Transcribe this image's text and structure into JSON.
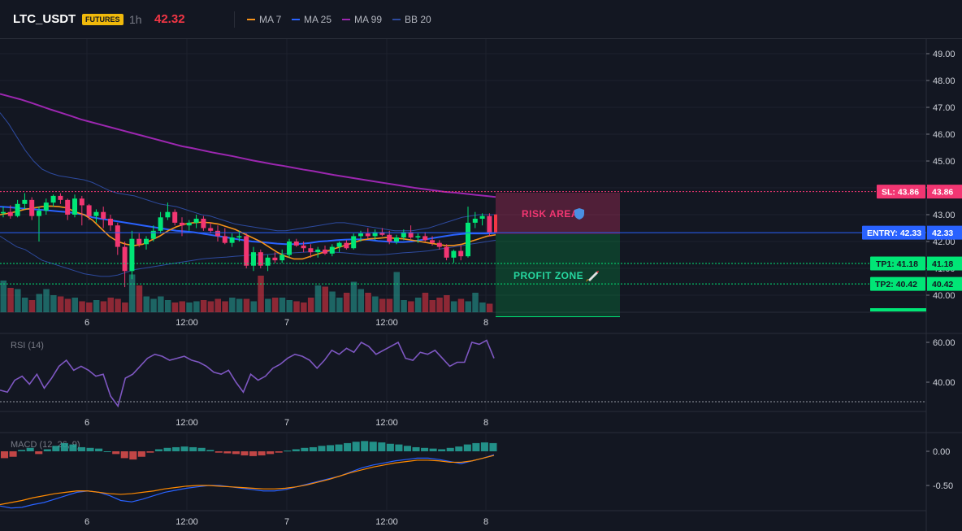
{
  "header": {
    "symbol": "LTC_USDT",
    "market_badge": "FUTURES",
    "interval": "1h",
    "last_price": "42.32",
    "indicators": [
      {
        "label": "MA 7",
        "color": "#f7931a"
      },
      {
        "label": "MA 25",
        "color": "#2962ff"
      },
      {
        "label": "MA 99",
        "color": "#9c27b0"
      },
      {
        "label": "BB 20",
        "color": "#2d4a9e"
      }
    ]
  },
  "price_axis": {
    "ticks": [
      "49.00",
      "48.00",
      "47.00",
      "46.00",
      "45.00",
      "44.00",
      "43.00",
      "42.00",
      "41.00",
      "40.00"
    ],
    "tick_values": [
      49,
      48,
      47,
      46,
      45,
      44,
      43,
      42,
      41,
      40
    ]
  },
  "time_axis": {
    "labels": [
      "6",
      "12:00",
      "7",
      "12:00",
      "8"
    ]
  },
  "levels": {
    "sl": {
      "tag": "SL: 43.86",
      "value": "43.86",
      "price": 43.86,
      "color": "#f23672"
    },
    "entry": {
      "tag": "ENTRY: 42.33",
      "value": "42.33",
      "price": 42.33,
      "color": "#2962ff"
    },
    "tp1": {
      "tag": "TP1: 41.18",
      "value": "41.18",
      "price": 41.18,
      "color": "#00e676"
    },
    "tp2": {
      "tag": "TP2: 40.42",
      "value": "40.42",
      "price": 40.42,
      "color": "#00e676"
    }
  },
  "zones": {
    "risk_label": "RISK AREA",
    "profit_label": "PROFIT ZONE",
    "risk_icon": "shield-icon",
    "profit_icon": "rocket-icon"
  },
  "rsi": {
    "label": "RSI (14)",
    "ticks": [
      "60.00",
      "40.00"
    ],
    "tick_values": [
      60,
      40
    ]
  },
  "macd": {
    "label": "MACD (12, 26, 9)",
    "ticks": [
      "0.00",
      "-0.50"
    ],
    "tick_values": [
      0,
      -0.5
    ]
  },
  "colors": {
    "up": "#26a69a",
    "up_candle": "#00e676",
    "down": "#f23645",
    "background": "#131722"
  },
  "chart_data": {
    "type": "candlestick",
    "series": [
      {
        "name": "LTC_USDT",
        "ohlc": [
          [
            43.05,
            43.3,
            42.9,
            43.1
          ],
          [
            43.1,
            43.35,
            42.85,
            42.95
          ],
          [
            42.95,
            43.55,
            42.9,
            43.4
          ],
          [
            43.4,
            43.8,
            43.2,
            43.55
          ],
          [
            43.55,
            43.65,
            42.8,
            42.95
          ],
          [
            42.95,
            43.3,
            42.0,
            43.15
          ],
          [
            43.15,
            43.6,
            43.0,
            43.45
          ],
          [
            43.45,
            43.75,
            43.3,
            43.7
          ],
          [
            43.7,
            43.8,
            43.4,
            43.55
          ],
          [
            43.55,
            43.6,
            42.8,
            43.0
          ],
          [
            43.0,
            43.75,
            42.9,
            43.6
          ],
          [
            43.6,
            43.7,
            42.6,
            43.35
          ],
          [
            43.35,
            43.4,
            42.8,
            42.95
          ],
          [
            42.95,
            43.2,
            42.7,
            43.1
          ],
          [
            43.1,
            43.3,
            42.5,
            42.85
          ],
          [
            42.85,
            43.0,
            42.4,
            42.6
          ],
          [
            42.6,
            42.7,
            41.5,
            41.8
          ],
          [
            41.8,
            42.0,
            40.3,
            40.9
          ],
          [
            40.9,
            42.4,
            40.6,
            42.1
          ],
          [
            42.1,
            42.3,
            41.8,
            41.9
          ],
          [
            41.9,
            42.2,
            41.7,
            42.1
          ],
          [
            42.1,
            42.6,
            42.0,
            42.4
          ],
          [
            42.4,
            43.1,
            42.3,
            42.9
          ],
          [
            42.9,
            43.45,
            42.8,
            43.1
          ],
          [
            43.1,
            43.2,
            42.6,
            42.7
          ],
          [
            42.7,
            42.9,
            42.2,
            42.6
          ],
          [
            42.6,
            42.8,
            42.4,
            42.7
          ],
          [
            42.7,
            43.0,
            42.5,
            42.85
          ],
          [
            42.85,
            42.95,
            42.4,
            42.5
          ],
          [
            42.5,
            42.7,
            42.3,
            42.4
          ],
          [
            42.4,
            42.6,
            42.0,
            42.2
          ],
          [
            42.2,
            42.5,
            41.9,
            41.95
          ],
          [
            41.95,
            42.3,
            41.8,
            42.15
          ],
          [
            42.15,
            42.4,
            42.0,
            42.2
          ],
          [
            42.2,
            42.3,
            41.0,
            41.1
          ],
          [
            41.1,
            41.8,
            40.9,
            41.6
          ],
          [
            41.6,
            41.7,
            41.0,
            41.1
          ],
          [
            41.1,
            41.5,
            40.9,
            41.4
          ],
          [
            41.4,
            41.6,
            41.2,
            41.3
          ],
          [
            41.3,
            41.7,
            41.2,
            41.5
          ],
          [
            41.5,
            42.1,
            41.4,
            42.0
          ],
          [
            42.0,
            42.1,
            41.8,
            41.85
          ],
          [
            41.85,
            42.0,
            41.6,
            41.75
          ],
          [
            41.75,
            41.9,
            41.4,
            41.6
          ],
          [
            41.6,
            41.8,
            41.4,
            41.7
          ],
          [
            41.7,
            41.85,
            41.5,
            41.55
          ],
          [
            41.55,
            41.9,
            41.45,
            41.8
          ],
          [
            41.8,
            42.0,
            41.6,
            41.95
          ],
          [
            41.95,
            42.05,
            41.7,
            41.75
          ],
          [
            41.75,
            42.3,
            41.7,
            42.2
          ],
          [
            42.2,
            42.4,
            42.0,
            42.3
          ],
          [
            42.3,
            42.5,
            42.1,
            42.2
          ],
          [
            42.2,
            42.45,
            42.05,
            42.35
          ],
          [
            42.35,
            42.5,
            42.2,
            42.25
          ],
          [
            42.25,
            42.4,
            41.9,
            42.0
          ],
          [
            42.0,
            42.25,
            41.9,
            42.15
          ],
          [
            42.15,
            42.45,
            42.05,
            42.35
          ],
          [
            42.35,
            42.6,
            42.1,
            42.15
          ],
          [
            42.15,
            42.3,
            41.95,
            42.2
          ],
          [
            42.2,
            42.35,
            42.0,
            42.05
          ],
          [
            42.05,
            42.2,
            41.85,
            41.95
          ],
          [
            41.95,
            42.05,
            41.7,
            41.8
          ],
          [
            41.8,
            41.9,
            41.3,
            41.4
          ],
          [
            41.4,
            41.7,
            41.2,
            41.65
          ],
          [
            41.65,
            41.85,
            41.3,
            41.45
          ],
          [
            41.45,
            43.3,
            41.4,
            42.7
          ],
          [
            42.7,
            43.1,
            42.5,
            42.85
          ],
          [
            42.85,
            43.05,
            42.6,
            42.95
          ],
          [
            42.95,
            43.05,
            42.2,
            42.32
          ]
        ]
      }
    ],
    "volume": [
      1.3,
      1.0,
      0.95,
      0.6,
      0.5,
      0.75,
      0.95,
      0.7,
      0.65,
      0.55,
      0.6,
      0.45,
      0.4,
      0.5,
      0.45,
      0.6,
      0.55,
      0.4,
      1.55,
      1.1,
      0.65,
      0.55,
      0.65,
      0.5,
      0.4,
      0.45,
      0.4,
      0.45,
      0.5,
      0.45,
      0.55,
      0.45,
      0.6,
      0.55,
      0.55,
      0.45,
      1.5,
      0.55,
      0.6,
      0.6,
      0.5,
      0.45,
      0.4,
      0.6,
      1.1,
      1.05,
      0.85,
      0.6,
      0.8,
      1.25,
      0.95,
      0.8,
      0.65,
      0.55,
      0.55,
      1.65,
      0.5,
      0.45,
      0.6,
      0.8,
      0.5,
      0.6,
      0.7,
      0.45,
      0.55,
      0.45,
      0.8,
      0.4,
      0.35
    ],
    "overlays": {
      "ma7": [
        43.0,
        43.05,
        43.12,
        43.2,
        43.25,
        43.3,
        43.32,
        43.3,
        43.25,
        43.1,
        43.0,
        42.8,
        42.5,
        42.2,
        42.0,
        41.9,
        41.85,
        41.9,
        42.05,
        42.2,
        42.4,
        42.55,
        42.65,
        42.7,
        42.72,
        42.7,
        42.65,
        42.55,
        42.45,
        42.3,
        42.15,
        42.0,
        41.8,
        41.6,
        41.45,
        41.35,
        41.35,
        41.45,
        41.55,
        41.65,
        41.75,
        41.85,
        41.95,
        42.05,
        42.1,
        42.12,
        42.15,
        42.12,
        42.1,
        42.05,
        42.0,
        41.95,
        41.9,
        41.85,
        41.85,
        41.9,
        42.0,
        42.1,
        42.2,
        42.25
      ],
      "ma25": [
        43.3,
        43.28,
        43.25,
        43.22,
        43.2,
        43.18,
        43.15,
        43.12,
        43.1,
        43.05,
        43.0,
        42.9,
        42.85,
        42.8,
        42.75,
        42.7,
        42.65,
        42.6,
        42.55,
        42.5,
        42.45,
        42.4,
        42.38,
        42.35,
        42.3,
        42.25,
        42.2,
        42.15,
        42.1,
        42.05,
        42.0,
        41.98,
        41.95,
        41.92,
        41.9,
        41.9,
        41.92,
        41.95,
        42.0,
        42.02,
        42.05,
        42.07,
        42.08,
        42.08,
        42.06,
        42.02,
        42.0,
        41.98,
        41.98,
        42.0,
        42.05,
        42.1,
        42.15,
        42.2,
        42.25,
        42.28,
        42.3,
        42.3,
        42.3,
        42.32
      ],
      "ma99": [
        47.5,
        47.4,
        47.3,
        47.18,
        47.05,
        46.92,
        46.8,
        46.68,
        46.55,
        46.45,
        46.35,
        46.25,
        46.15,
        46.05,
        45.95,
        45.85,
        45.75,
        45.65,
        45.55,
        45.48,
        45.4,
        45.32,
        45.25,
        45.18,
        45.1,
        45.02,
        44.95,
        44.88,
        44.82,
        44.75,
        44.68,
        44.62,
        44.55,
        44.48,
        44.42,
        44.36,
        44.3,
        44.24,
        44.18,
        44.12,
        44.06,
        44.0,
        43.95,
        43.9,
        43.85,
        43.82,
        43.78,
        43.74,
        43.7,
        43.66
      ],
      "bb_upper": [
        46.8,
        46.4,
        45.9,
        45.4,
        45.0,
        44.7,
        44.55,
        44.45,
        44.4,
        44.35,
        44.3,
        44.2,
        44.05,
        43.9,
        43.8,
        43.75,
        43.7,
        43.6,
        43.5,
        43.4,
        43.35,
        43.3,
        43.2,
        43.1,
        43.0,
        42.95,
        42.85,
        42.75,
        42.65,
        42.6,
        42.55,
        42.5,
        42.45,
        42.4,
        42.4,
        42.45,
        42.5,
        42.55,
        42.6,
        42.65,
        42.7,
        42.7,
        42.65,
        42.6,
        42.55,
        42.5,
        42.45,
        42.4,
        42.4,
        42.4,
        42.45,
        42.5,
        42.6,
        42.7,
        42.8,
        42.9,
        42.95,
        43.0,
        43.0,
        43.0
      ],
      "bb_lower": [
        42.2,
        42.0,
        41.8,
        41.7,
        41.5,
        41.3,
        41.2,
        41.1,
        41.0,
        40.9,
        40.8,
        40.75,
        40.7,
        40.7,
        40.75,
        40.85,
        40.95,
        41.0,
        41.05,
        41.1,
        41.15,
        41.2,
        41.25,
        41.3,
        41.35,
        41.38,
        41.4,
        41.42,
        41.45,
        41.47,
        41.5,
        41.5,
        41.52,
        41.55,
        41.55,
        41.58,
        41.6,
        41.62,
        41.62,
        41.62,
        41.6,
        41.58,
        41.55,
        41.52,
        41.5,
        41.5,
        41.52,
        41.55,
        41.58,
        41.6,
        41.62,
        41.65,
        41.7,
        41.75,
        41.8,
        41.85,
        41.9,
        41.95,
        42.0,
        42.05
      ]
    },
    "rsi_values": [
      36,
      35,
      41,
      43,
      39,
      44,
      37,
      42,
      48,
      51,
      46,
      48,
      46,
      43,
      44,
      33,
      28,
      42,
      44,
      48,
      52,
      54,
      53,
      51,
      52,
      53,
      51,
      50,
      48,
      45,
      44,
      46,
      40,
      35,
      44,
      41,
      43,
      47,
      49,
      52,
      54,
      53,
      51,
      47,
      51,
      56,
      54,
      57,
      55,
      60,
      58,
      54,
      56,
      58,
      60,
      52,
      51,
      55,
      54,
      56,
      52,
      48,
      50,
      50,
      60,
      59,
      61,
      52
    ],
    "macd_hist": [
      -0.1,
      -0.08,
      0.02,
      0.05,
      -0.04,
      0.03,
      0.08,
      0.12,
      0.1,
      0.06,
      0.05,
      0.04,
      0.0,
      -0.04,
      -0.1,
      -0.12,
      -0.08,
      -0.02,
      0.03,
      0.05,
      0.06,
      0.07,
      0.06,
      0.05,
      0.02,
      -0.02,
      -0.03,
      -0.04,
      -0.06,
      -0.07,
      -0.06,
      -0.04,
      -0.02,
      0.01,
      0.03,
      0.05,
      0.06,
      0.08,
      0.09,
      0.1,
      0.12,
      0.14,
      0.15,
      0.14,
      0.13,
      0.11,
      0.1,
      0.08,
      0.06,
      0.05,
      0.04,
      0.03,
      0.05,
      0.07,
      0.1,
      0.12,
      0.13,
      0.12
    ],
    "macd_line": [
      -0.8,
      -0.83,
      -0.82,
      -0.78,
      -0.75,
      -0.7,
      -0.65,
      -0.6,
      -0.58,
      -0.6,
      -0.65,
      -0.72,
      -0.74,
      -0.7,
      -0.65,
      -0.6,
      -0.57,
      -0.54,
      -0.52,
      -0.5,
      -0.5,
      -0.52,
      -0.54,
      -0.56,
      -0.58,
      -0.58,
      -0.56,
      -0.52,
      -0.48,
      -0.44,
      -0.4,
      -0.36,
      -0.3,
      -0.24,
      -0.2,
      -0.17,
      -0.14,
      -0.12,
      -0.1,
      -0.1,
      -0.12,
      -0.15,
      -0.18,
      -0.14,
      -0.1,
      -0.05
    ],
    "signal_line": [
      -0.78,
      -0.75,
      -0.72,
      -0.68,
      -0.65,
      -0.62,
      -0.6,
      -0.58,
      -0.58,
      -0.6,
      -0.62,
      -0.63,
      -0.62,
      -0.6,
      -0.58,
      -0.55,
      -0.53,
      -0.51,
      -0.5,
      -0.5,
      -0.51,
      -0.52,
      -0.53,
      -0.54,
      -0.55,
      -0.55,
      -0.54,
      -0.52,
      -0.49,
      -0.45,
      -0.41,
      -0.36,
      -0.31,
      -0.27,
      -0.23,
      -0.2,
      -0.17,
      -0.15,
      -0.13,
      -0.13,
      -0.14,
      -0.16,
      -0.16,
      -0.14,
      -0.1,
      -0.06
    ],
    "ylim": [
      39.55,
      49.2
    ]
  }
}
